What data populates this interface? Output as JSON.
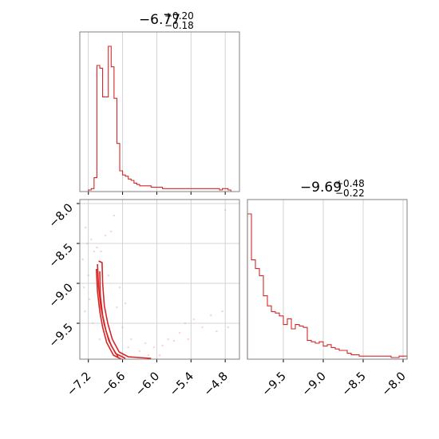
{
  "colors": {
    "accent": "#d62728",
    "grid": "#c8c8c8",
    "frame": "#808080"
  },
  "chart_data": [
    {
      "type": "histogram",
      "title": {
        "value": "-6.77",
        "upper": "+0.20",
        "lower": "-0.18"
      },
      "xlim": [
        -7.35,
        -4.55
      ],
      "bin_edges": [
        -7.2,
        -7.15,
        -7.1,
        -7.05,
        -7.0,
        -6.95,
        -6.9,
        -6.85,
        -6.8,
        -6.75,
        -6.7,
        -6.65,
        -6.6,
        -6.55,
        -6.5,
        -6.45,
        -6.4,
        -6.35,
        -6.3,
        -6.25,
        -6.2,
        -6.15,
        -6.1,
        -6.05,
        -6.0,
        -5.95,
        -5.9,
        -5.85,
        -5.8,
        -5.75,
        -5.7,
        -5.65,
        -5.6,
        -5.55,
        -5.5,
        -5.45,
        -5.4,
        -5.35,
        -5.3,
        -5.25,
        -5.2,
        -5.15,
        -5.1,
        -5.05,
        -5.0,
        -4.95,
        -4.9,
        -4.85,
        -4.8,
        -4.75,
        -4.7
      ],
      "counts": [
        0,
        1,
        9,
        91,
        89,
        68,
        68,
        105,
        90,
        67,
        34,
        14,
        11,
        10,
        8,
        7,
        5,
        4,
        3,
        3,
        3,
        3,
        2,
        2,
        2,
        2,
        1,
        1,
        1,
        1,
        1,
        1,
        1,
        1,
        1,
        1,
        1,
        1,
        1,
        1,
        1,
        1,
        1,
        1,
        1,
        1,
        0,
        1,
        1,
        0
      ],
      "y_ticks_labeled": false
    },
    {
      "type": "scatter+contour",
      "xlim": [
        -7.35,
        -4.55
      ],
      "ylim": [
        -7.95,
        -9.95
      ],
      "x_ticks": [
        -7.2,
        -6.6,
        -6.0,
        -5.4,
        -4.8
      ],
      "x_tick_labels": [
        "−7.2",
        "−6.6",
        "−6.0",
        "−5.4",
        "−4.8"
      ],
      "y_ticks": [
        -8.0,
        -8.5,
        -9.0,
        -9.5
      ],
      "y_tick_labels": [
        "−8.0",
        "−8.5",
        "−9.0",
        "−9.5"
      ],
      "contours": [
        [
          [
            -7.02,
            -8.72
          ],
          [
            -6.96,
            -8.74
          ],
          [
            -6.95,
            -9.0
          ],
          [
            -6.92,
            -9.28
          ],
          [
            -6.86,
            -9.5
          ],
          [
            -6.78,
            -9.7
          ],
          [
            -6.66,
            -9.86
          ],
          [
            -6.5,
            -9.92
          ],
          [
            -6.3,
            -9.93
          ],
          [
            -6.1,
            -9.94
          ]
        ],
        [
          [
            -7.04,
            -8.76
          ],
          [
            -7.02,
            -9.05
          ],
          [
            -6.98,
            -9.3
          ],
          [
            -6.92,
            -9.52
          ],
          [
            -6.84,
            -9.72
          ],
          [
            -6.72,
            -9.88
          ],
          [
            -6.55,
            -9.94
          ]
        ],
        [
          [
            -7.06,
            -8.82
          ],
          [
            -7.04,
            -9.1
          ],
          [
            -7.0,
            -9.35
          ],
          [
            -6.95,
            -9.55
          ],
          [
            -6.88,
            -9.74
          ],
          [
            -6.76,
            -9.9
          ],
          [
            -6.62,
            -9.95
          ]
        ],
        [
          [
            -7.0,
            -8.85
          ],
          [
            -6.99,
            -9.15
          ],
          [
            -6.95,
            -9.4
          ],
          [
            -6.89,
            -9.6
          ],
          [
            -6.8,
            -9.78
          ],
          [
            -6.68,
            -9.92
          ]
        ]
      ],
      "points": [
        [
          -7.25,
          -8.3
        ],
        [
          -7.22,
          -8.5
        ],
        [
          -7.15,
          -8.45
        ],
        [
          -7.1,
          -8.6
        ],
        [
          -7.3,
          -8.7
        ],
        [
          -7.05,
          -8.55
        ],
        [
          -6.98,
          -8.6
        ],
        [
          -6.9,
          -8.4
        ],
        [
          -6.75,
          -8.15
        ],
        [
          -6.8,
          -8.35
        ],
        [
          -7.2,
          -8.9
        ],
        [
          -7.18,
          -9.2
        ],
        [
          -7.28,
          -9.05
        ],
        [
          -7.12,
          -9.5
        ],
        [
          -7.0,
          -9.7
        ],
        [
          -6.7,
          -9.3
        ],
        [
          -6.6,
          -9.55
        ],
        [
          -6.5,
          -9.8
        ],
        [
          -6.3,
          -9.85
        ],
        [
          -6.2,
          -9.75
        ],
        [
          -6.05,
          -9.8
        ],
        [
          -5.9,
          -9.78
        ],
        [
          -5.8,
          -9.7
        ],
        [
          -5.7,
          -9.72
        ],
        [
          -5.6,
          -9.62
        ],
        [
          -5.5,
          -9.5
        ],
        [
          -5.35,
          -9.45
        ],
        [
          -5.2,
          -9.55
        ],
        [
          -5.05,
          -9.4
        ],
        [
          -4.85,
          -9.35
        ],
        [
          -4.75,
          -9.55
        ],
        [
          -4.95,
          -9.6
        ],
        [
          -5.45,
          -9.7
        ],
        [
          -6.45,
          -9.7
        ],
        [
          -6.6,
          -9.9
        ],
        [
          -6.15,
          -9.9
        ],
        [
          -5.95,
          -9.9
        ],
        [
          -4.8,
          -8.08
        ],
        [
          -7.26,
          -9.35
        ],
        [
          -6.85,
          -8.9
        ],
        [
          -6.65,
          -9.05
        ],
        [
          -6.55,
          -9.25
        ]
      ]
    },
    {
      "type": "histogram",
      "title": {
        "value": "-9.69",
        "upper": "+0.48",
        "lower": "-0.22"
      },
      "xlim": [
        -9.95,
        -7.95
      ],
      "x_ticks": [
        -9.5,
        -9.0,
        -8.5,
        -8.0
      ],
      "x_tick_labels": [
        "−9.5",
        "−9.0",
        "−8.5",
        "−8.0"
      ],
      "bin_edges": [
        -9.95,
        -9.9,
        -9.85,
        -9.8,
        -9.75,
        -9.7,
        -9.65,
        -9.6,
        -9.55,
        -9.5,
        -9.45,
        -9.4,
        -9.35,
        -9.3,
        -9.25,
        -9.2,
        -9.15,
        -9.1,
        -9.05,
        -9.0,
        -8.95,
        -8.9,
        -8.85,
        -8.8,
        -8.75,
        -8.7,
        -8.65,
        -8.6,
        -8.55,
        -8.5,
        -8.45,
        -8.4,
        -8.35,
        -8.3,
        -8.25,
        -8.2,
        -8.15,
        -8.1,
        -8.05,
        -8.0,
        -7.95
      ],
      "counts": [
        100,
        68,
        62,
        57,
        43,
        36,
        32,
        31,
        29,
        23,
        27,
        20,
        23,
        22,
        21,
        12,
        11,
        10,
        11,
        8,
        9,
        7,
        6,
        5,
        5,
        3,
        2,
        2,
        1,
        1,
        1,
        1,
        1,
        1,
        1,
        1,
        0,
        0,
        1,
        1
      ],
      "y_ticks_labeled": false
    }
  ]
}
